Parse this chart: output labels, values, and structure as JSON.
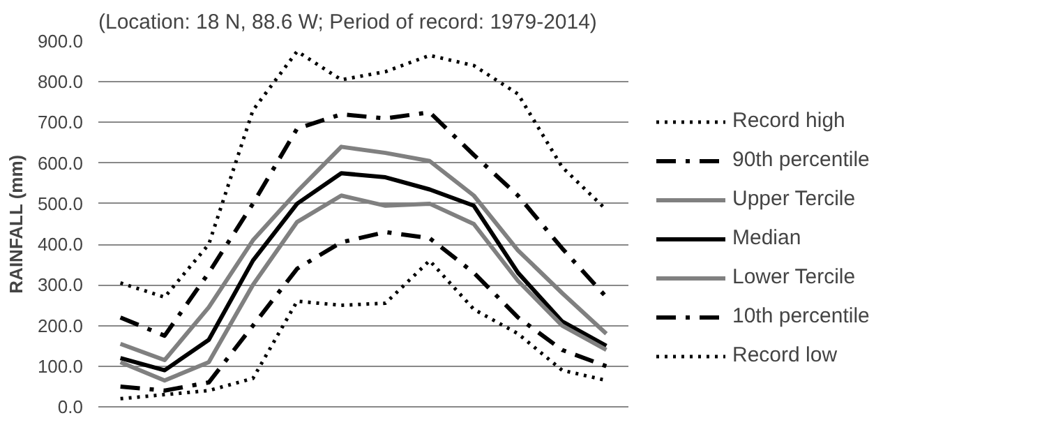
{
  "chart_data": {
    "type": "line",
    "title": "(Location: 18 N, 88.6 W; Period of record: 1979-2014)",
    "ylabel": "RAINFALL (mm)",
    "categories": [
      null,
      null,
      null,
      null,
      null,
      null,
      null,
      null,
      null,
      null,
      null,
      null
    ],
    "ylim": [
      0,
      900
    ],
    "yticks": [
      {
        "value": 0,
        "label": "0.0"
      },
      {
        "value": 100,
        "label": "100.0"
      },
      {
        "value": 200,
        "label": "200.0"
      },
      {
        "value": 300,
        "label": "300.0"
      },
      {
        "value": 400,
        "label": "400.0"
      },
      {
        "value": 500,
        "label": "500.0"
      },
      {
        "value": 600,
        "label": "600.0"
      },
      {
        "value": 700,
        "label": "700.0"
      },
      {
        "value": 800,
        "label": "800.0"
      },
      {
        "value": 900,
        "label": "900.0"
      }
    ],
    "grid": "y",
    "legend": "right",
    "marker": "none",
    "series": [
      {
        "name": "Record high",
        "color": "#000000",
        "line_style": "dotted",
        "values": [
          305,
          270,
          400,
          730,
          875,
          805,
          825,
          865,
          840,
          770,
          590,
          485
        ]
      },
      {
        "name": "90th percentile",
        "color": "#000000",
        "line_style": "dashed",
        "values": [
          220,
          175,
          330,
          500,
          685,
          720,
          710,
          725,
          620,
          520,
          390,
          270
        ]
      },
      {
        "name": "Upper Tercile",
        "color": "#808080",
        "line_style": "solid",
        "values": [
          155,
          115,
          245,
          410,
          530,
          640,
          625,
          605,
          520,
          385,
          280,
          180
        ]
      },
      {
        "name": "Median",
        "color": "#000000",
        "line_style": "solid",
        "values": [
          120,
          90,
          165,
          360,
          500,
          575,
          565,
          535,
          495,
          330,
          210,
          150
        ]
      },
      {
        "name": "Lower Tercile",
        "color": "#808080",
        "line_style": "solid",
        "values": [
          110,
          65,
          110,
          300,
          455,
          520,
          495,
          500,
          450,
          310,
          200,
          140
        ]
      },
      {
        "name": "10th percentile",
        "color": "#000000",
        "line_style": "dashed",
        "values": [
          50,
          40,
          60,
          200,
          340,
          405,
          430,
          415,
          330,
          220,
          140,
          100
        ]
      },
      {
        "name": "Record low",
        "color": "#000000",
        "line_style": "dotted",
        "values": [
          20,
          30,
          40,
          70,
          260,
          250,
          255,
          360,
          240,
          180,
          90,
          65
        ]
      }
    ]
  }
}
